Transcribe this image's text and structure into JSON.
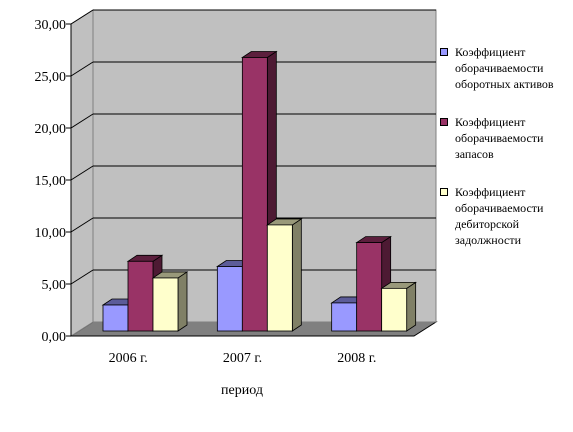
{
  "chart_data": {
    "type": "bar",
    "categories": [
      "2006 г.",
      "2007 г.",
      "2008 г."
    ],
    "series": [
      {
        "name": "Коэффициент оборачиваемости оборотных активов",
        "color": "#9999ff",
        "values": [
          2.5,
          6.2,
          2.7
        ]
      },
      {
        "name": "Коэффициент оборачиваемости запасов",
        "color": "#993366",
        "values": [
          6.7,
          26.3,
          8.5
        ]
      },
      {
        "name": "Коэффициент оборачиваемости дебиторской задолжности",
        "color": "#ffffcc",
        "values": [
          5.1,
          10.2,
          4.1
        ]
      }
    ],
    "xlabel": "период",
    "ylabel": "",
    "ylim": [
      0,
      30
    ],
    "yticks": [
      "0,00",
      "5,00",
      "10,00",
      "15,00",
      "20,00",
      "25,00",
      "30,00"
    ],
    "grid": true,
    "legend": "right",
    "style": "3d-clustered"
  }
}
